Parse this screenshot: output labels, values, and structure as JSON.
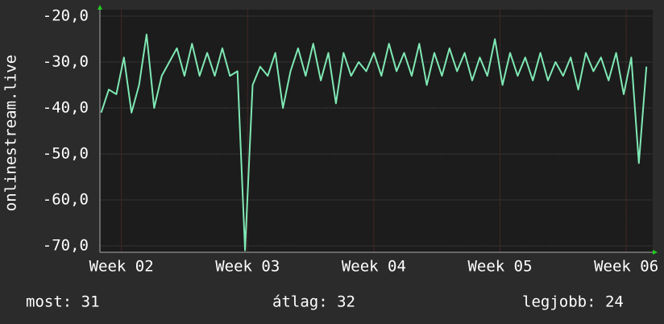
{
  "chart_data": {
    "type": "line",
    "y_label": "onlinestream.live",
    "x": [
      1.84,
      1.9,
      1.96,
      2.02,
      2.08,
      2.14,
      2.2,
      2.26,
      2.32,
      2.38,
      2.44,
      2.5,
      2.56,
      2.62,
      2.68,
      2.74,
      2.8,
      2.86,
      2.92,
      2.98,
      3.04,
      3.1,
      3.16,
      3.22,
      3.28,
      3.34,
      3.4,
      3.46,
      3.52,
      3.58,
      3.64,
      3.7,
      3.76,
      3.82,
      3.88,
      3.94,
      4,
      4.06,
      4.12,
      4.18,
      4.24,
      4.3,
      4.36,
      4.42,
      4.48,
      4.54,
      4.6,
      4.66,
      4.72,
      4.78,
      4.84,
      4.9,
      4.96,
      5.02,
      5.08,
      5.14,
      5.2,
      5.26,
      5.32,
      5.38,
      5.44,
      5.5,
      5.56,
      5.62,
      5.68,
      5.74,
      5.8,
      5.86,
      5.92,
      5.98,
      6.04,
      6.1,
      6.16
    ],
    "series": [
      {
        "color": "#7fe8b4",
        "values": [
          -41,
          -36,
          -37,
          -29,
          -41,
          -35,
          -24,
          -40,
          -33,
          -30,
          -27,
          -33,
          -26,
          -33,
          -28,
          -33,
          -27,
          -33,
          -32,
          -71,
          -35,
          -31,
          -33,
          -28,
          -40,
          -32,
          -27,
          -33,
          -26,
          -34,
          -28,
          -39,
          -28,
          -33,
          -30,
          -32,
          -28,
          -33,
          -26,
          -32,
          -28,
          -33,
          -26,
          -35,
          -28,
          -33,
          -27,
          -32,
          -28,
          -34,
          -29,
          -33,
          -25,
          -35,
          -28,
          -33,
          -29,
          -34,
          -28,
          -34,
          -30,
          -33,
          -29,
          -36,
          -28,
          -32,
          -29,
          -34,
          -28,
          -37,
          -29,
          -52,
          -31
        ]
      }
    ],
    "xlim": [
      1.83,
      6.21
    ],
    "xticks": [
      {
        "value": 2,
        "label": "Week 02"
      },
      {
        "value": 3,
        "label": "Week 03"
      },
      {
        "value": 4,
        "label": "Week 04"
      },
      {
        "value": 5,
        "label": "Week 05"
      },
      {
        "value": 6,
        "label": "Week 06"
      }
    ],
    "ylim": [
      -71.4,
      -18.6
    ],
    "yticks": [
      {
        "value": -20,
        "label": "-20,0"
      },
      {
        "value": -30,
        "label": "-30,0"
      },
      {
        "value": -40,
        "label": "-40,0"
      },
      {
        "value": -50,
        "label": "-50,0"
      },
      {
        "value": -60,
        "label": "-60,0"
      },
      {
        "value": -70,
        "label": "-70,0"
      }
    ],
    "grid": true,
    "stats": [
      "most: 31",
      "átlag: 32",
      "legjobb: 24"
    ]
  }
}
